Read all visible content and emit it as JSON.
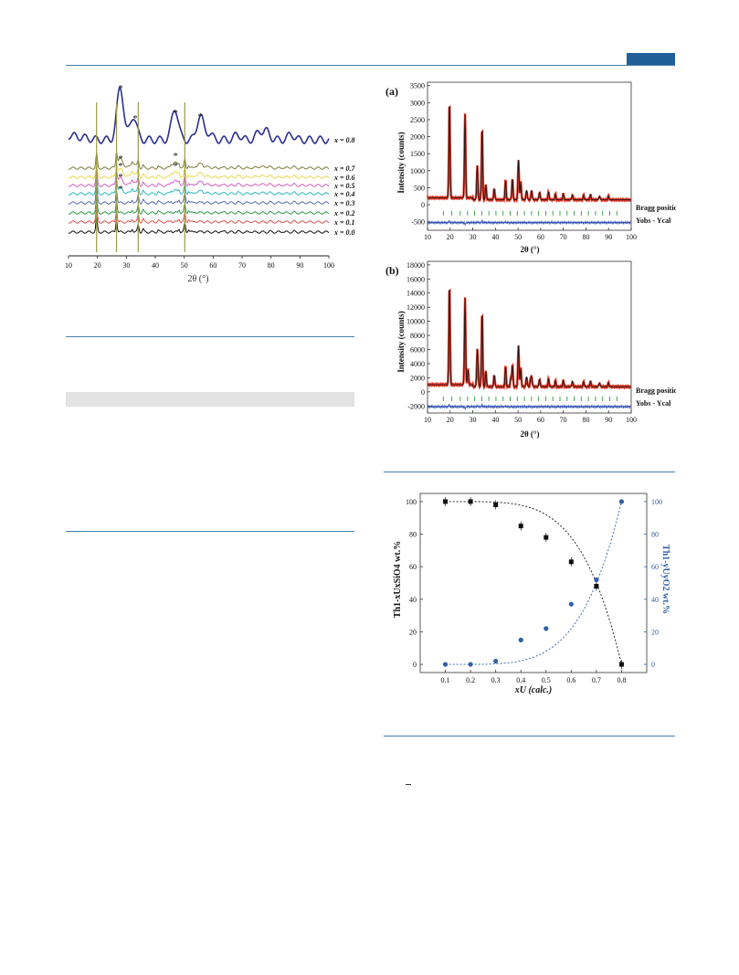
{
  "fig1": {
    "xlabel": "2θ (°)",
    "xticks": [
      "10",
      "20",
      "30",
      "40",
      "50",
      "60",
      "70",
      "80",
      "90",
      "100"
    ],
    "series_labels": [
      "x = 0.8",
      "x = 0.7",
      "x = 0.6",
      "x = 0.5",
      "x = 0.4",
      "x = 0.3",
      "x = 0.2",
      "x = 0.1",
      "x = 0.0"
    ],
    "series_colors": [
      "#2b2f8f",
      "#7e7e3a",
      "#e6d94a",
      "#d45fc0",
      "#2fb6c0",
      "#5a6bb0",
      "#2e9a4a",
      "#e25050",
      "#111111"
    ],
    "marker": "*"
  },
  "fig2a": {
    "panel": "(a)",
    "ylabel": "Intensity (counts)",
    "xlabel": "2θ (°)",
    "yticks": [
      "3500",
      "3000",
      "2500",
      "2000",
      "1500",
      "1000",
      "500",
      "0",
      "-500"
    ],
    "xticks": [
      "10",
      "20",
      "30",
      "40",
      "50",
      "60",
      "70",
      "80",
      "90",
      "100"
    ],
    "bragg_label": "Bragg position",
    "diff_label": "Yobs - Ycal"
  },
  "fig2b": {
    "panel": "(b)",
    "ylabel": "Intensity (counts)",
    "xlabel": "2θ (°)",
    "yticks": [
      "18000",
      "16000",
      "14000",
      "12000",
      "10000",
      "8000",
      "6000",
      "4000",
      "2000",
      "0",
      "-2000"
    ],
    "xticks": [
      "10",
      "20",
      "30",
      "40",
      "50",
      "60",
      "70",
      "80",
      "90",
      "100"
    ],
    "bragg_label": "Bragg position",
    "diff_label": "Yobs - Ycal"
  },
  "fig3": {
    "ylabel_left": "Th1-xUxSiO4 wt.%",
    "ylabel_right": "Th1-yUyO2 wt.%",
    "xlabel": "xU (calc.)",
    "xticks": [
      "0.1",
      "0.2",
      "0.3",
      "0.4",
      "0.5",
      "0.6",
      "0.7",
      "0.8"
    ],
    "yticks": [
      "0",
      "20",
      "40",
      "60",
      "80",
      "100"
    ],
    "left_color": "#111111",
    "right_color": "#2f5fa8"
  },
  "chart_data": [
    {
      "type": "scatter",
      "xlabel": "xU (calc.)",
      "ylabel": "Th1-xUxSiO4 wt.%",
      "x": [
        0.1,
        0.2,
        0.3,
        0.4,
        0.5,
        0.6,
        0.7,
        0.8
      ],
      "series": [
        {
          "name": "Th1-xUxSiO4 wt.%",
          "values": [
            100,
            100,
            98,
            85,
            78,
            63,
            48,
            0
          ]
        },
        {
          "name": "Th1-yUyO2 wt.%",
          "values": [
            0,
            0,
            2,
            15,
            22,
            37,
            52,
            100
          ]
        }
      ],
      "xlim": [
        0,
        0.9
      ],
      "ylim": [
        -5,
        105
      ]
    }
  ]
}
